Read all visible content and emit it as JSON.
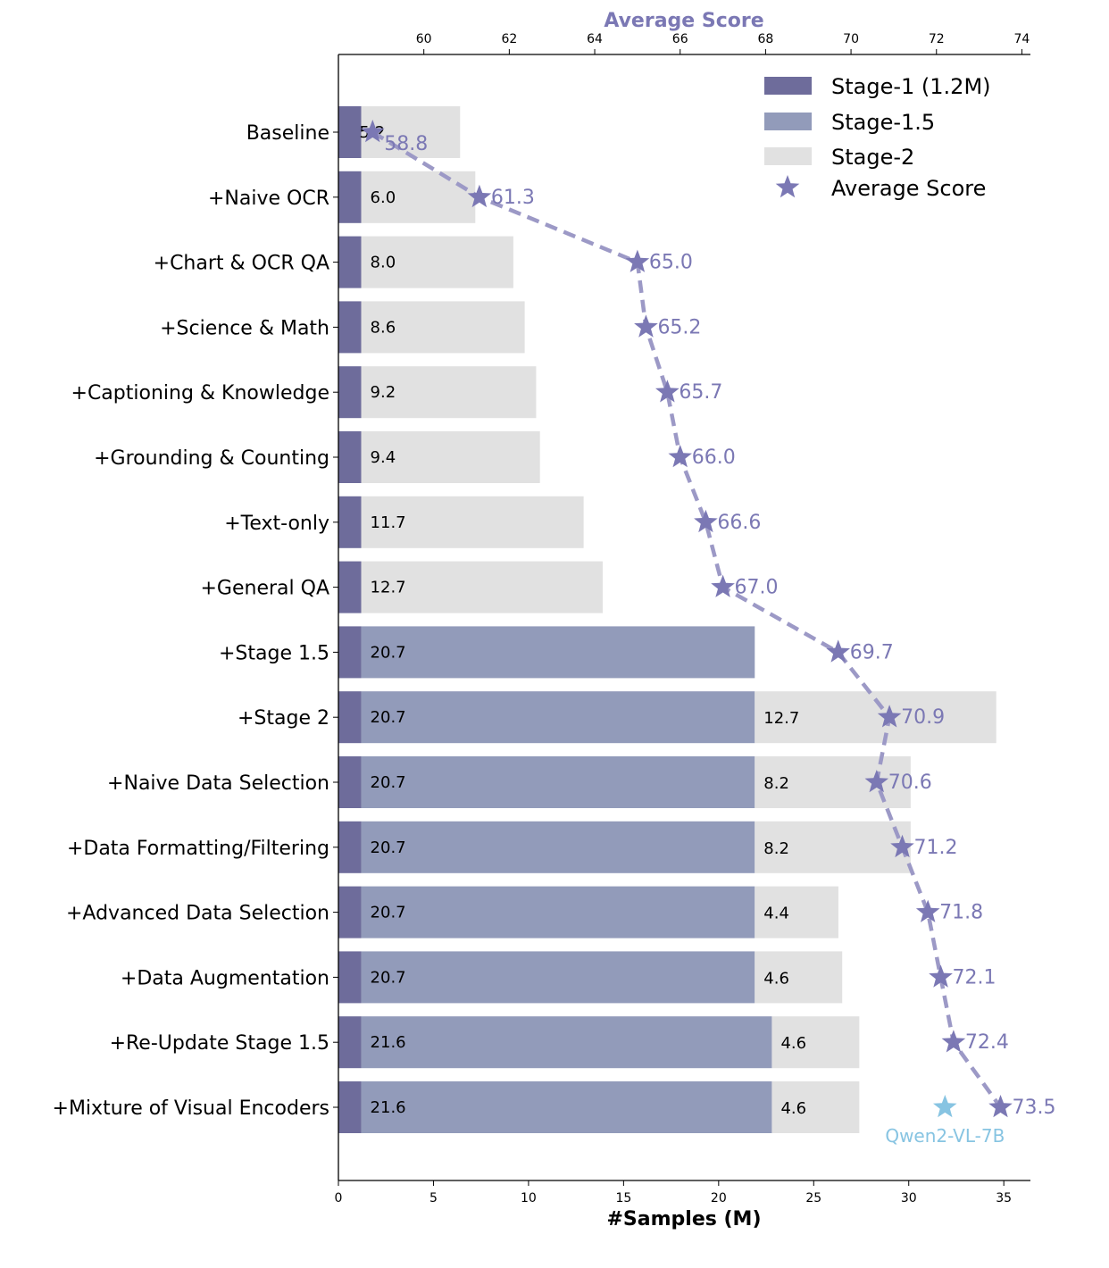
{
  "chart_data": {
    "type": "bar",
    "orientation": "horizontal",
    "stacked": true,
    "xlabel": "#Samples (M)",
    "top_xlabel": "Average Score",
    "xlim": [
      0,
      36.4
    ],
    "x_ticks": [
      0,
      5,
      10,
      15,
      20,
      25,
      30,
      35
    ],
    "score_lim": [
      58.0,
      74.2
    ],
    "score_ticks": [
      60,
      62,
      64,
      66,
      68,
      70,
      72,
      74
    ],
    "grid": false,
    "legend_position": "top-right",
    "colors": {
      "stage1": "#6e6c9b",
      "stage15": "#929bba",
      "stage2": "#e1e1e1",
      "score": "#7b78b4",
      "line": "#9c99c6",
      "qwen": "#87c4e2"
    },
    "categories": [
      "Baseline",
      "+Naive OCR",
      "+Chart & OCR QA",
      "+Science & Math",
      "+Captioning & Knowledge",
      "+Grounding & Counting",
      "+Text-only",
      "+General QA",
      "+Stage 1.5",
      "+Stage 2",
      "+Naive Data Selection",
      "+Data Formatting/Filtering",
      "+Advanced Data Selection",
      "+Data Augmentation",
      "+Re-Update Stage 1.5",
      "+Mixture of Visual Encoders"
    ],
    "series": [
      {
        "name": "Stage-1 (1.2M)",
        "values": [
          1.2,
          1.2,
          1.2,
          1.2,
          1.2,
          1.2,
          1.2,
          1.2,
          1.2,
          1.2,
          1.2,
          1.2,
          1.2,
          1.2,
          1.2,
          1.2
        ]
      },
      {
        "name": "Stage-1.5",
        "values": [
          0,
          0,
          0,
          0,
          0,
          0,
          0,
          0,
          20.7,
          20.7,
          20.7,
          20.7,
          20.7,
          20.7,
          21.6,
          21.6
        ]
      },
      {
        "name": "Stage-2",
        "values": [
          5.2,
          6.0,
          8.0,
          8.6,
          9.2,
          9.4,
          11.7,
          12.7,
          0,
          12.7,
          8.2,
          8.2,
          4.4,
          4.6,
          4.6,
          4.6
        ]
      }
    ],
    "bar_labels_stage1": [
      "5.2",
      "6.0",
      "8.0",
      "8.6",
      "9.2",
      "9.4",
      "11.7",
      "12.7",
      "20.7",
      "20.7",
      "20.7",
      "20.7",
      "20.7",
      "20.7",
      "21.6",
      "21.6"
    ],
    "bar_labels_stage2": [
      "",
      "",
      "",
      "",
      "",
      "",
      "",
      "",
      "",
      "12.7",
      "8.2",
      "8.2",
      "4.4",
      "4.6",
      "4.6",
      "4.6"
    ],
    "average_score": {
      "name": "Average Score",
      "values": [
        58.8,
        61.3,
        65.0,
        65.2,
        65.7,
        66.0,
        66.6,
        67.0,
        69.7,
        70.9,
        70.6,
        71.2,
        71.8,
        72.1,
        72.4,
        73.5
      ],
      "labels": [
        "58.8",
        "61.3",
        "65.0",
        "65.2",
        "65.7",
        "66.0",
        "66.6",
        "67.0",
        "69.7",
        "70.9",
        "70.6",
        "71.2",
        "71.8",
        "72.1",
        "72.4",
        "73.5"
      ]
    },
    "reference": {
      "name": "Qwen2-VL-7B",
      "category": "+Mixture of Visual Encoders",
      "score": 72.2
    },
    "legend": [
      "Stage-1 (1.2M)",
      "Stage-1.5",
      "Stage-2",
      "Average Score"
    ]
  }
}
